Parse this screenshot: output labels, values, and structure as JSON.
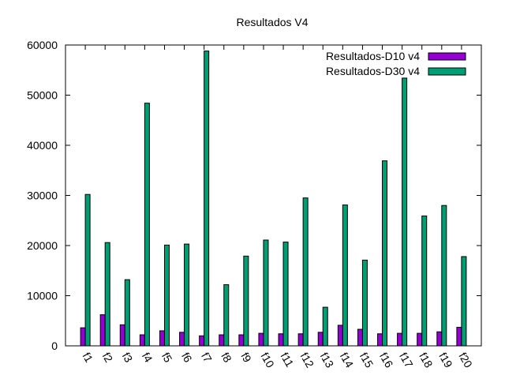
{
  "chart_data": {
    "type": "bar",
    "title": "Resultados V4",
    "xlabel": "",
    "ylabel": "",
    "ylim": [
      0,
      60000
    ],
    "yticks": [
      0,
      10000,
      20000,
      30000,
      40000,
      50000,
      60000
    ],
    "grid": false,
    "legend_position": "top-right",
    "categories": [
      "f1",
      "f2",
      "f3",
      "f4",
      "f5",
      "f6",
      "f7",
      "f8",
      "f9",
      "f10",
      "f11",
      "f12",
      "f13",
      "f14",
      "f15",
      "f16",
      "f17",
      "f18",
      "f19",
      "f20"
    ],
    "series": [
      {
        "name": "Resultados-D10 v4",
        "color": "#9400d3",
        "values": [
          3600,
          6200,
          4200,
          2200,
          3000,
          2700,
          2000,
          2200,
          2200,
          2500,
          2400,
          2400,
          2700,
          4100,
          3300,
          2400,
          2500,
          2500,
          2800,
          3700
        ]
      },
      {
        "name": "Resultados-D30 v4",
        "color": "#009e73",
        "values": [
          30200,
          20600,
          13200,
          48400,
          20100,
          20300,
          58800,
          12200,
          17900,
          21100,
          20700,
          29500,
          7700,
          28100,
          17100,
          36900,
          53400,
          25900,
          28000,
          17800
        ]
      }
    ]
  }
}
